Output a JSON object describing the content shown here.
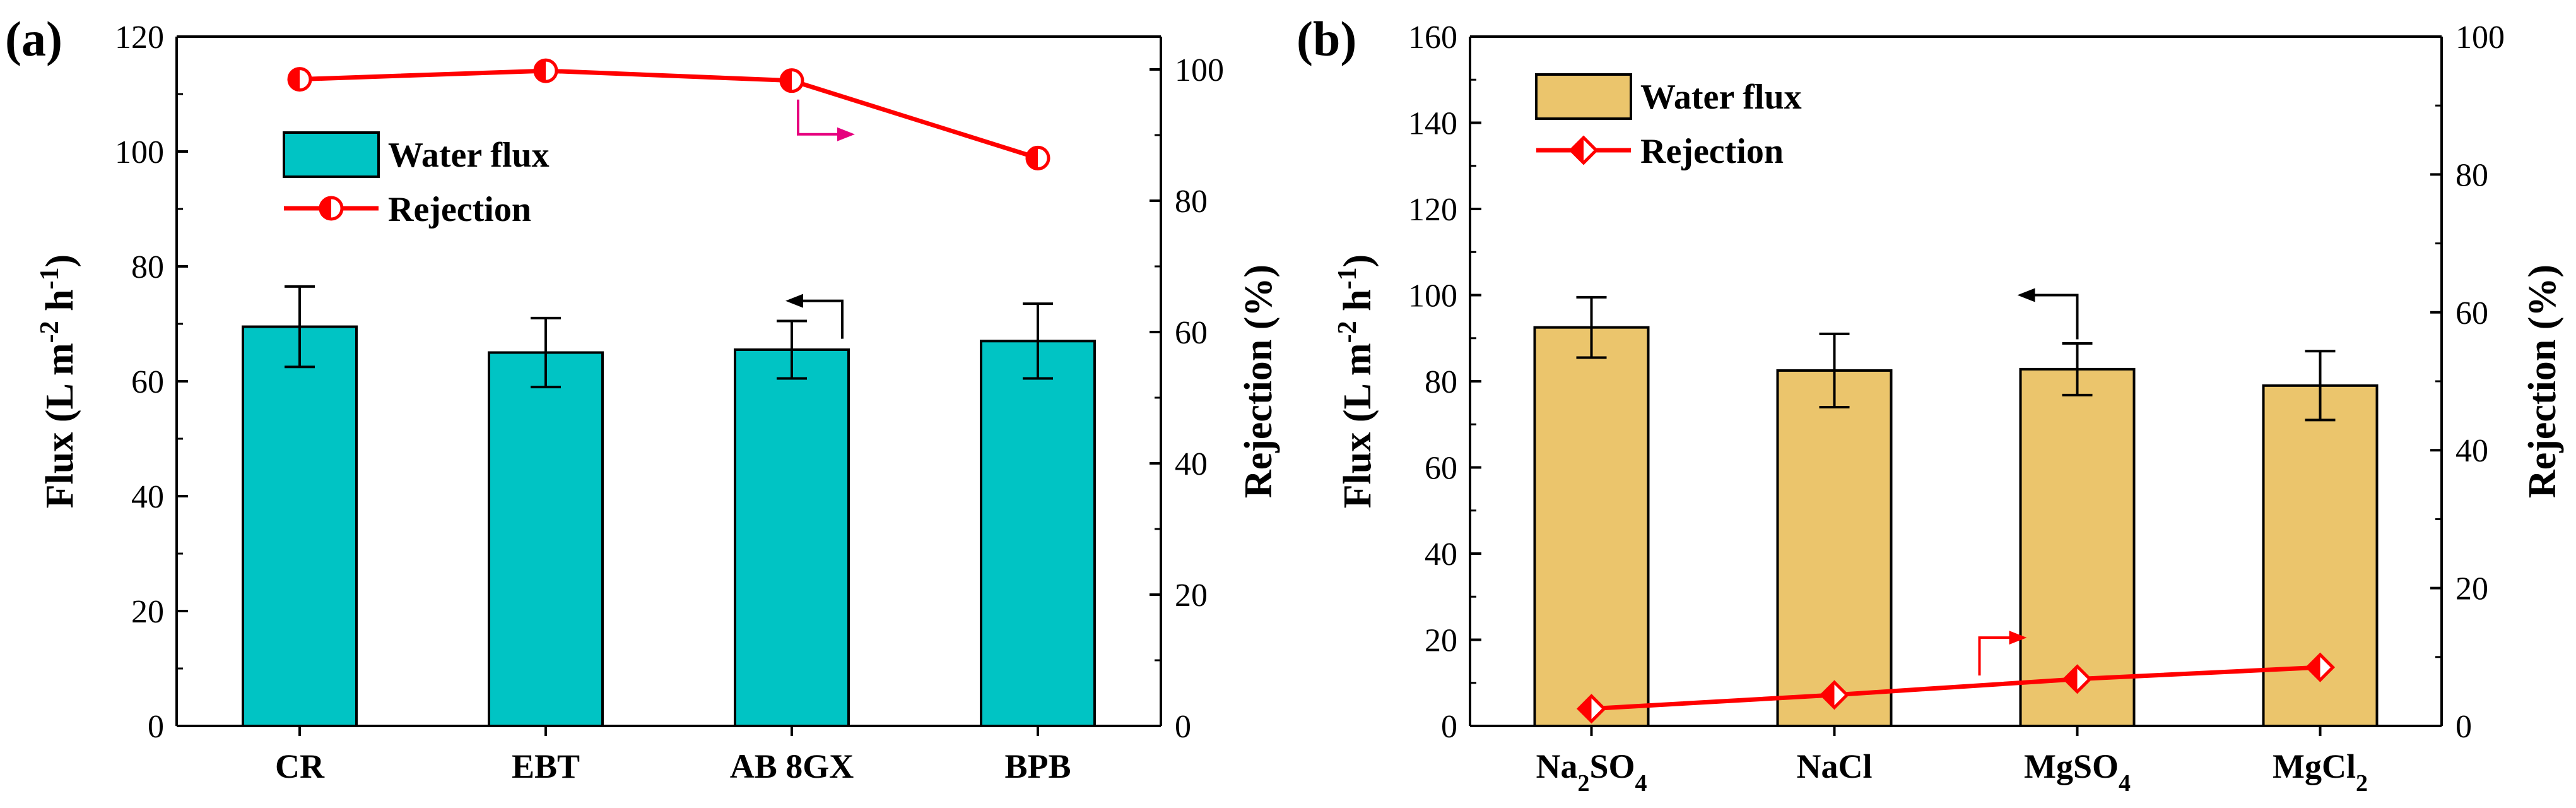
{
  "chart_data": [
    {
      "panel_label": "(a)",
      "type": "bar",
      "categories": [
        "CR",
        "EBT",
        "AB 8GX",
        "BPB"
      ],
      "series": [
        {
          "name": "Water flux",
          "axis": "left",
          "type": "bar",
          "color": "#00C4C4",
          "values": [
            69.5,
            65,
            65.5,
            67
          ],
          "errors": [
            7,
            6,
            5,
            6.5
          ]
        },
        {
          "name": "Rejection",
          "axis": "right",
          "type": "line",
          "color": "#FF0000",
          "values": [
            98.5,
            99.8,
            98.3,
            86.5
          ]
        }
      ],
      "ylabel_left": {
        "main": "Flux (L m",
        "sup1": "-2",
        "mid": " h",
        "sup2": "-1",
        "end": ")"
      },
      "ylabel_right": "Rejection (%)",
      "ylim_left": [
        0,
        120
      ],
      "yticks_left": [
        0,
        20,
        40,
        60,
        80,
        100,
        120
      ],
      "ylim_right": [
        0,
        105
      ],
      "yticks_right": [
        0,
        20,
        40,
        60,
        80,
        100
      ],
      "legend": {
        "flux": "Water flux",
        "rejection": "Rejection",
        "position": "top-left"
      },
      "annotation_arrows": {
        "flux_axis_arrow": "left",
        "rejection_axis_arrow": "right",
        "rejection_arrow_color": "#E6007E"
      }
    },
    {
      "panel_label": "(b)",
      "type": "bar",
      "categories": [
        {
          "base": "Na",
          "sub1": "2",
          "mid": "SO",
          "sub2": "4"
        },
        {
          "base": "NaCl",
          "sub1": "",
          "mid": "",
          "sub2": ""
        },
        {
          "base": "MgSO",
          "sub1": "4",
          "mid": "",
          "sub2": ""
        },
        {
          "base": "MgCl",
          "sub1": "2",
          "mid": "",
          "sub2": ""
        }
      ],
      "series": [
        {
          "name": "Water flux",
          "axis": "left",
          "type": "bar",
          "color": "#EBC56C",
          "values": [
            92.5,
            82.5,
            82.8,
            79
          ],
          "errors": [
            7,
            8.5,
            6,
            8
          ]
        },
        {
          "name": "Rejection",
          "axis": "right",
          "type": "line",
          "color": "#FF0000",
          "values": [
            2.5,
            4.5,
            6.8,
            8.5
          ]
        }
      ],
      "ylabel_left": {
        "main": "Flux (L m",
        "sup1": "-2",
        "mid": " h",
        "sup2": "-1",
        "end": ")"
      },
      "ylabel_right": "Rejection (%)",
      "ylim_left": [
        0,
        160
      ],
      "yticks_left": [
        0,
        20,
        40,
        60,
        80,
        100,
        120,
        140,
        160
      ],
      "ylim_right": [
        0,
        100
      ],
      "yticks_right": [
        0,
        20,
        40,
        60,
        80,
        100
      ],
      "legend": {
        "flux": "Water flux",
        "rejection": "Rejection",
        "position": "top-left"
      },
      "annotation_arrows": {
        "flux_axis_arrow": "left",
        "rejection_axis_arrow": "right",
        "rejection_arrow_color": "#FF0000"
      }
    }
  ]
}
